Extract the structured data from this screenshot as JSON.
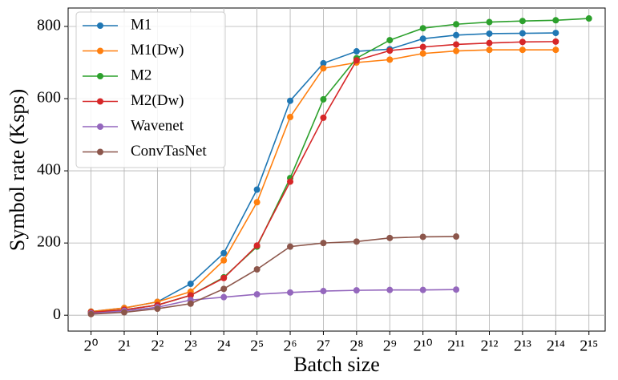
{
  "chart_data": {
    "type": "line",
    "xlabel": "Batch size",
    "ylabel": "Symbol rate (Ksps)",
    "x": [
      1,
      2,
      4,
      8,
      16,
      32,
      64,
      128,
      256,
      512,
      1024,
      2048,
      4096,
      8192,
      16384,
      32768
    ],
    "xscale": "log2",
    "xlim": [
      0.62,
      46000
    ],
    "xticks": [
      {
        "value": 1,
        "label": "2⁰"
      },
      {
        "value": 2,
        "label": "2¹"
      },
      {
        "value": 4,
        "label": "2²"
      },
      {
        "value": 8,
        "label": "2³"
      },
      {
        "value": 16,
        "label": "2⁴"
      },
      {
        "value": 32,
        "label": "2⁵"
      },
      {
        "value": 64,
        "label": "2⁶"
      },
      {
        "value": 128,
        "label": "2⁷"
      },
      {
        "value": 256,
        "label": "2⁸"
      },
      {
        "value": 512,
        "label": "2⁹"
      },
      {
        "value": 1024,
        "label": "2¹⁰"
      },
      {
        "value": 2048,
        "label": "2¹¹"
      },
      {
        "value": 4096,
        "label": "2¹²"
      },
      {
        "value": 8192,
        "label": "2¹³"
      },
      {
        "value": 16384,
        "label": "2¹⁴"
      },
      {
        "value": 32768,
        "label": "2¹⁵"
      }
    ],
    "ylim": [
      -44,
      851
    ],
    "yticks": [
      0,
      200,
      400,
      600,
      800
    ],
    "grid": true,
    "legend": "upper left",
    "series": [
      {
        "name": "M1",
        "color": "#1f77b4",
        "values": [
          10,
          20,
          37,
          87,
          172,
          348,
          594,
          698,
          731,
          737,
          766,
          776,
          780,
          781,
          782,
          null
        ]
      },
      {
        "name": "M1(Dw)",
        "color": "#ff7f0e",
        "values": [
          10,
          20,
          37,
          65,
          152,
          313,
          549,
          684,
          700,
          708,
          725,
          732,
          735,
          735,
          735,
          null
        ]
      },
      {
        "name": "M2",
        "color": "#2ca02c",
        "values": [
          8,
          15,
          28,
          55,
          105,
          190,
          380,
          598,
          712,
          762,
          795,
          806,
          812,
          815,
          817,
          822
        ]
      },
      {
        "name": "M2(Dw)",
        "color": "#d62728",
        "values": [
          8,
          15,
          28,
          55,
          103,
          193,
          370,
          547,
          706,
          733,
          743,
          750,
          754,
          757,
          758,
          null
        ]
      },
      {
        "name": "Wavenet",
        "color": "#9467bd",
        "values": [
          5,
          12,
          22,
          42,
          50,
          58,
          63,
          67,
          69,
          70,
          70,
          71,
          null,
          null,
          null,
          null
        ]
      },
      {
        "name": "ConvTasNet",
        "color": "#8c564b",
        "values": [
          3,
          8,
          18,
          32,
          73,
          127,
          190,
          200,
          204,
          214,
          217,
          218,
          null,
          null,
          null,
          null
        ]
      }
    ]
  }
}
